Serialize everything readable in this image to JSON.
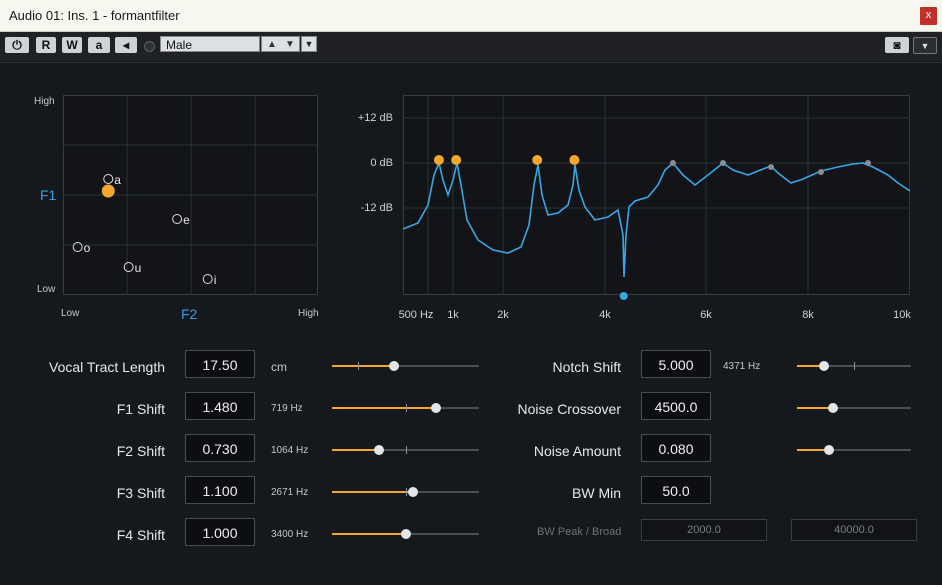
{
  "window": {
    "title": "Audio 01: Ins. 1 - formantfilter",
    "close_label": "x"
  },
  "toolbar": {
    "power_label": "⏻",
    "read_label": "R",
    "write_label": "W",
    "auto_label": "a",
    "bypass_label": "◂",
    "preset_value": "Male"
  },
  "vowel_pad": {
    "y_high": "High",
    "y_low": "Low",
    "y_label": "F1",
    "x_low": "Low",
    "x_high": "High",
    "x_label": "F2",
    "vowels": [
      {
        "label": "a",
        "f2": 0.15,
        "f1": 0.58
      },
      {
        "label": "e",
        "f2": 0.42,
        "f1": 0.38
      },
      {
        "label": "o",
        "f2": 0.03,
        "f1": 0.24
      },
      {
        "label": "u",
        "f2": 0.23,
        "f1": 0.14
      },
      {
        "label": "i",
        "f2": 0.54,
        "f1": 0.08
      }
    ],
    "cursor": {
      "f2": 0.15,
      "f1": 0.52
    },
    "colors": {
      "accent": "#f4a72d",
      "label": "#3a9be0"
    }
  },
  "spectrum": {
    "y_ticks": [
      {
        "label": "+12 dB",
        "db": 12
      },
      {
        "label": "0 dB",
        "db": 0
      },
      {
        "label": "-12 dB",
        "db": -12
      }
    ],
    "x_ticks": [
      {
        "label": "500 Hz",
        "f": 500
      },
      {
        "label": "1k",
        "f": 1000
      },
      {
        "label": "2k",
        "f": 2000
      },
      {
        "label": "4k",
        "f": 4000
      },
      {
        "label": "6k",
        "f": 6000
      },
      {
        "label": "8k",
        "f": 8000
      },
      {
        "label": "10k",
        "f": 10000
      }
    ],
    "formant_points": [
      719,
      1064,
      2671,
      3400
    ],
    "notch_point": 4371,
    "line_color": "#3aa6e6"
  },
  "params_left": [
    {
      "name": "Vocal Tract Length",
      "value": "17.50",
      "unit": "cm",
      "pos": 0.42,
      "tick": 0.18
    },
    {
      "name": "F1 Shift",
      "value": "1.480",
      "unit": "719 Hz",
      "pos": 0.71,
      "tick": 0.5
    },
    {
      "name": "F2 Shift",
      "value": "0.730",
      "unit": "1064 Hz",
      "pos": 0.32,
      "tick": 0.5
    },
    {
      "name": "F3 Shift",
      "value": "1.100",
      "unit": "2671 Hz",
      "pos": 0.55,
      "tick": 0.5
    },
    {
      "name": "F4 Shift",
      "value": "1.000",
      "unit": "3400 Hz",
      "pos": 0.5,
      "tick": 0.5
    }
  ],
  "params_right": [
    {
      "name": "Notch Shift",
      "value": "5.000",
      "unit": "4371 Hz",
      "pos": 0.24,
      "tick": 0.5,
      "slider": true
    },
    {
      "name": "Noise Crossover",
      "value": "4500.0",
      "unit": "",
      "pos": 0.32,
      "slider": true
    },
    {
      "name": "Noise Amount",
      "value": "0.080",
      "unit": "",
      "pos": 0.28,
      "slider": true
    },
    {
      "name": "BW Min",
      "value": "50.0",
      "unit": "",
      "slider": false
    }
  ],
  "bw_peak": {
    "label": "BW Peak / Broad",
    "peak": "2000.0",
    "broad": "40000.0"
  }
}
